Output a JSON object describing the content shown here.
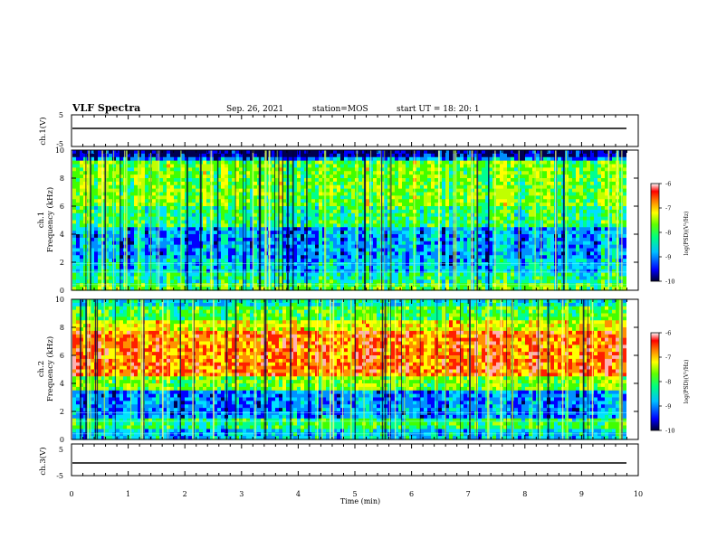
{
  "chart_data": {
    "type": "heatmap",
    "header": {
      "title": "VLF Spectra",
      "date": "Sep. 26, 2021",
      "station": "station=MOS",
      "start": "start UT =  18: 20: 1"
    },
    "x_axis": {
      "label": "Time (min)",
      "range": [
        0,
        10
      ],
      "ticks": [
        "0",
        "1",
        "2",
        "3",
        "4",
        "5",
        "6",
        "7",
        "8",
        "9",
        "10"
      ]
    },
    "panels": [
      {
        "id": "ch1_voltage",
        "type": "line",
        "ylabel": "ch.1(V)",
        "yrange": [
          -5,
          5
        ],
        "ytick_labels": [
          "5",
          "-5"
        ],
        "baseline_value": 0
      },
      {
        "id": "ch1_spectrogram",
        "type": "heatmap",
        "ylabel": "ch.1\nFrequency (kHz)",
        "yrange": [
          0,
          10
        ],
        "ytick_labels": [
          "0",
          "2",
          "4",
          "6",
          "8",
          "10"
        ],
        "pattern": "broadband noise, moderate green/cyan, blue gap near 2-4 kHz, strong activity 6-9 kHz"
      },
      {
        "id": "ch2_spectrogram",
        "type": "heatmap",
        "ylabel": "ch.2\nFrequency (kHz)",
        "yrange": [
          0,
          10
        ],
        "ytick_labels": [
          "0",
          "2",
          "4",
          "6",
          "8",
          "10"
        ],
        "pattern": "intense red/orange band 4.5-8.5 kHz, blue 1.5-3 kHz"
      },
      {
        "id": "ch3_voltage",
        "type": "line",
        "ylabel": "ch.3(V)",
        "yrange": [
          -5,
          5
        ],
        "ytick_labels": [
          "5",
          "-5"
        ],
        "baseline_value": 0
      }
    ],
    "colorbars": [
      {
        "panel": "ch1_spectrogram",
        "label": "log(PSD)(V²/Hz)",
        "range": [
          -10,
          -6
        ],
        "ticks": [
          "-6",
          "-7",
          "-8",
          "-9",
          "-10"
        ]
      },
      {
        "panel": "ch2_spectrogram",
        "label": "log(PSD)(V²/Hz)",
        "range": [
          -10,
          -6
        ],
        "ticks": [
          "-6",
          "-7",
          "-8",
          "-9",
          "-10"
        ]
      }
    ],
    "colormap": [
      "#000050",
      "#0000ff",
      "#00c0ff",
      "#00ff80",
      "#60ff00",
      "#ffff00",
      "#ff8000",
      "#ff0000",
      "#ffffff"
    ]
  }
}
